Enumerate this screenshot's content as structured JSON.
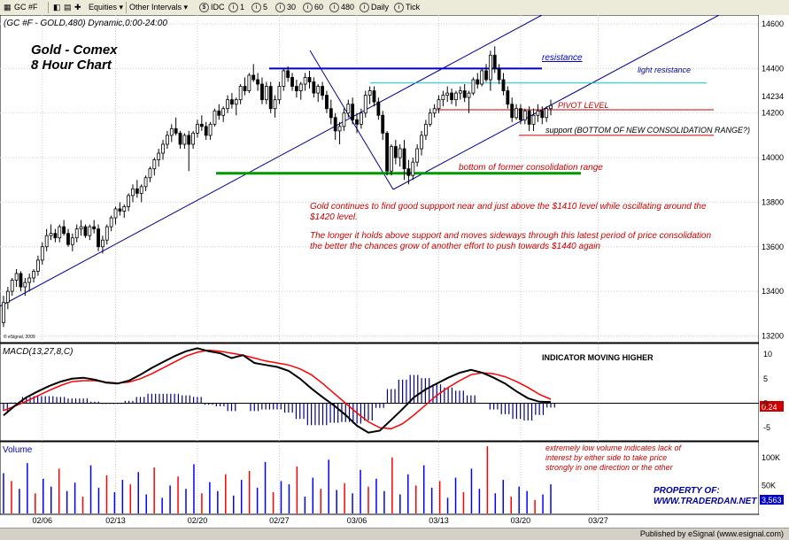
{
  "toolbar": {
    "symbol": "GC #F",
    "equities_label": "Equities",
    "other_intervals_label": "Other Intervals",
    "idc_label": "IDC",
    "i1_label": "1",
    "i5_label": "5",
    "i30_label": "30",
    "i60_label": "60",
    "i480_label": "480",
    "daily_label": "Daily",
    "tick_label": "Tick"
  },
  "chart_header": "(GC #F - GOLD,480) Dynamic,0:00-24:00",
  "chart_title_line1": "Gold - Comex",
  "chart_title_line2": "8 Hour Chart",
  "copyright": "© eSignal, 2009",
  "annotations": {
    "resistance": "resistance",
    "light_resistance": "light resistance",
    "pivot": "PIVOT LEVEL",
    "support": "support (BOTTOM OF NEW CONSOLIDATION RANGE?)",
    "former_range": "bottom of former consolidation range",
    "comment1": "Gold continues to find good suppport near and just above the $1410 level while oscillating around the $1420 level.",
    "comment2": "The longer it holds above support and moves sideways through this latest period of price consolidation the better the chances grow of another effort to push towards $1440 again",
    "macd_note": "INDICATOR MOVING HIGHER",
    "volume_note": "extremely low volume indicates lack of interest by either side to take price strongly in one direction or the other",
    "property_line1": "PROPERTY OF:",
    "property_line2": "WWW.TRADERDAN.NET"
  },
  "macd_label": "MACD(13,27,8,C)",
  "volume_label": "Volume",
  "last_price": "14234",
  "macd_last": "0.24",
  "volume_last": "3,563",
  "status_text": "Published by eSignal (www.esignal.com)",
  "colors": {
    "price_up": "#ffffff",
    "price_down": "#000000",
    "channel": "#000099",
    "resistance": "#0000cc",
    "light_resistance": "#00cccc",
    "pivot": "#cc0000",
    "former_range": "#009900",
    "text_red": "#cc0000",
    "text_blue": "#000099",
    "macd_line": "#000000",
    "signal_line": "#ff0000",
    "hist": "#000080",
    "vol_up": "#0000ff",
    "vol_down": "#ff0000"
  },
  "chart_data": [
    {
      "type": "candlestick",
      "title": "Gold - Comex 8 Hour Chart",
      "x_tick_labels": [
        "02/06",
        "02/13",
        "02/20",
        "02/27",
        "03/06",
        "03/13",
        "03/20",
        "03/27"
      ],
      "x_tick_bar_index": [
        9,
        26,
        45,
        64,
        82,
        101,
        120,
        138
      ],
      "y_ticks": [
        13200,
        13400,
        13600,
        13800,
        14000,
        14200,
        14400,
        14600
      ],
      "ylim": [
        13170,
        14640
      ],
      "bars": [
        [
          13260,
          13380,
          13240,
          13350
        ],
        [
          13350,
          13420,
          13320,
          13400
        ],
        [
          13400,
          13460,
          13380,
          13450
        ],
        [
          13450,
          13500,
          13420,
          13480
        ],
        [
          13480,
          13490,
          13400,
          13420
        ],
        [
          13420,
          13460,
          13380,
          13440
        ],
        [
          13440,
          13480,
          13400,
          13460
        ],
        [
          13460,
          13500,
          13440,
          13490
        ],
        [
          13490,
          13560,
          13470,
          13540
        ],
        [
          13540,
          13620,
          13520,
          13600
        ],
        [
          13600,
          13680,
          13580,
          13650
        ],
        [
          13650,
          13700,
          13630,
          13660
        ],
        [
          13660,
          13680,
          13620,
          13640
        ],
        [
          13640,
          13700,
          13620,
          13690
        ],
        [
          13690,
          13720,
          13650,
          13660
        ],
        [
          13660,
          13680,
          13600,
          13610
        ],
        [
          13610,
          13660,
          13580,
          13640
        ],
        [
          13640,
          13700,
          13620,
          13680
        ],
        [
          13680,
          13720,
          13650,
          13690
        ],
        [
          13690,
          13700,
          13640,
          13650
        ],
        [
          13650,
          13700,
          13630,
          13690
        ],
        [
          13690,
          13720,
          13660,
          13680
        ],
        [
          13680,
          13700,
          13580,
          13600
        ],
        [
          13600,
          13650,
          13570,
          13630
        ],
        [
          13630,
          13700,
          13610,
          13690
        ],
        [
          13690,
          13740,
          13670,
          13730
        ],
        [
          13730,
          13780,
          13700,
          13770
        ],
        [
          13770,
          13800,
          13740,
          13760
        ],
        [
          13760,
          13790,
          13730,
          13780
        ],
        [
          13780,
          13840,
          13760,
          13830
        ],
        [
          13830,
          13880,
          13800,
          13860
        ],
        [
          13860,
          13900,
          13820,
          13840
        ],
        [
          13840,
          13880,
          13800,
          13870
        ],
        [
          13870,
          13920,
          13850,
          13910
        ],
        [
          13910,
          13960,
          13890,
          13950
        ],
        [
          13950,
          14000,
          13920,
          13990
        ],
        [
          13990,
          14040,
          13960,
          14020
        ],
        [
          14020,
          14080,
          13990,
          14060
        ],
        [
          14060,
          14120,
          14040,
          14100
        ],
        [
          14100,
          14150,
          14070,
          14130
        ],
        [
          14130,
          14180,
          14100,
          14110
        ],
        [
          14110,
          14120,
          14040,
          14060
        ],
        [
          14060,
          14110,
          14040,
          14100
        ],
        [
          14100,
          14120,
          13940,
          14060
        ],
        [
          14060,
          14120,
          14040,
          14110
        ],
        [
          14110,
          14170,
          14090,
          14150
        ],
        [
          14150,
          14190,
          14120,
          14140
        ],
        [
          14140,
          14160,
          14080,
          14100
        ],
        [
          14100,
          14160,
          14080,
          14150
        ],
        [
          14150,
          14220,
          14140,
          14210
        ],
        [
          14210,
          14240,
          14170,
          14190
        ],
        [
          14190,
          14230,
          14160,
          14220
        ],
        [
          14220,
          14280,
          14200,
          14260
        ],
        [
          14260,
          14290,
          14220,
          14240
        ],
        [
          14240,
          14270,
          14190,
          14260
        ],
        [
          14260,
          14330,
          14240,
          14320
        ],
        [
          14320,
          14360,
          14280,
          14300
        ],
        [
          14300,
          14380,
          14290,
          14370
        ],
        [
          14370,
          14420,
          14340,
          14350
        ],
        [
          14350,
          14380,
          14300,
          14330
        ],
        [
          14330,
          14360,
          14240,
          14260
        ],
        [
          14260,
          14340,
          14240,
          14320
        ],
        [
          14320,
          14340,
          14200,
          14220
        ],
        [
          14220,
          14280,
          14180,
          14260
        ],
        [
          14260,
          14340,
          14240,
          14320
        ],
        [
          14320,
          14400,
          14300,
          14390
        ],
        [
          14390,
          14410,
          14340,
          14360
        ],
        [
          14360,
          14380,
          14300,
          14320
        ],
        [
          14320,
          14350,
          14270,
          14300
        ],
        [
          14300,
          14340,
          14260,
          14330
        ],
        [
          14330,
          14380,
          14300,
          14360
        ],
        [
          14360,
          14390,
          14310,
          14340
        ],
        [
          14340,
          14360,
          14270,
          14290
        ],
        [
          14290,
          14330,
          14250,
          14320
        ],
        [
          14320,
          14340,
          14260,
          14280
        ],
        [
          14280,
          14300,
          14200,
          14220
        ],
        [
          14220,
          14260,
          14150,
          14180
        ],
        [
          14180,
          14200,
          14080,
          14120
        ],
        [
          14120,
          14160,
          14060,
          14140
        ],
        [
          14140,
          14220,
          14120,
          14200
        ],
        [
          14200,
          14260,
          14180,
          14240
        ],
        [
          14240,
          14270,
          14150,
          14170
        ],
        [
          14170,
          14200,
          14110,
          14150
        ],
        [
          14150,
          14220,
          14130,
          14200
        ],
        [
          14200,
          14300,
          14180,
          14280
        ],
        [
          14280,
          14320,
          14240,
          14300
        ],
        [
          14300,
          14320,
          14230,
          14250
        ],
        [
          14250,
          14270,
          14170,
          14190
        ],
        [
          14190,
          14210,
          14080,
          14110
        ],
        [
          14110,
          14120,
          13920,
          13940
        ],
        [
          13940,
          14060,
          13920,
          14050
        ],
        [
          14050,
          14080,
          13970,
          14000
        ],
        [
          14000,
          14060,
          13960,
          14040
        ],
        [
          14040,
          14080,
          13900,
          13950
        ],
        [
          13950,
          13990,
          13880,
          13920
        ],
        [
          13920,
          14000,
          13900,
          13980
        ],
        [
          13980,
          14060,
          13960,
          14040
        ],
        [
          14040,
          14120,
          14010,
          14100
        ],
        [
          14100,
          14170,
          14080,
          14150
        ],
        [
          14150,
          14220,
          14140,
          14200
        ],
        [
          14200,
          14240,
          14180,
          14220
        ],
        [
          14220,
          14280,
          14200,
          14260
        ],
        [
          14260,
          14300,
          14230,
          14280
        ],
        [
          14280,
          14320,
          14250,
          14290
        ],
        [
          14290,
          14310,
          14240,
          14260
        ],
        [
          14260,
          14300,
          14230,
          14290
        ],
        [
          14290,
          14320,
          14260,
          14300
        ],
        [
          14300,
          14330,
          14250,
          14270
        ],
        [
          14270,
          14300,
          14200,
          14290
        ],
        [
          14290,
          14360,
          14280,
          14350
        ],
        [
          14350,
          14380,
          14310,
          14330
        ],
        [
          14330,
          14400,
          14320,
          14390
        ],
        [
          14390,
          14420,
          14340,
          14350
        ],
        [
          14350,
          14480,
          14300,
          14460
        ],
        [
          14460,
          14500,
          14380,
          14400
        ],
        [
          14400,
          14420,
          14330,
          14350
        ],
        [
          14350,
          14380,
          14280,
          14300
        ],
        [
          14300,
          14320,
          14220,
          14240
        ],
        [
          14240,
          14270,
          14160,
          14180
        ],
        [
          14180,
          14240,
          14170,
          14220
        ],
        [
          14220,
          14240,
          14150,
          14170
        ],
        [
          14170,
          14220,
          14150,
          14210
        ],
        [
          14210,
          14230,
          14120,
          14150
        ],
        [
          14150,
          14220,
          14120,
          14190
        ],
        [
          14190,
          14240,
          14160,
          14210
        ],
        [
          14210,
          14230,
          14150,
          14180
        ],
        [
          14180,
          14230,
          14160,
          14220
        ],
        [
          14220,
          14260,
          14190,
          14234
        ]
      ],
      "lines": {
        "resistance": 14400,
        "light_resistance": 14335,
        "pivot": 14215,
        "support": 14100,
        "former_range_bottom": 13930
      },
      "macd": {
        "label": "MACD(13,27,8,C)",
        "y_ticks": [
          10,
          5,
          0,
          -5
        ],
        "ylim": [
          -7.5,
          12
        ],
        "macd_line": [
          -2.5,
          -0.5,
          1.2,
          2.4,
          3.5,
          4.4,
          5,
          5.2,
          4.8,
          4.2,
          4,
          4.6,
          5.8,
          7.2,
          8.4,
          9.6,
          10.6,
          11.2,
          10.6,
          10.2,
          9.2,
          9.8,
          8.2,
          7.8,
          7.4,
          6.6,
          5,
          3,
          1.2,
          -0.5,
          -2.4,
          -4.6,
          -6,
          -5.6,
          -3.4,
          -1.2,
          1.2,
          2.8,
          4,
          5.2,
          6.2,
          6.8,
          6.2,
          5.2,
          4,
          2.4,
          1,
          0.3,
          0.24
        ],
        "signal_line": [
          -1.5,
          -0.6,
          0.4,
          1.5,
          2.6,
          3.6,
          4.4,
          4.6,
          4.6,
          4.3,
          4.1,
          4.3,
          5,
          6,
          7.2,
          8.4,
          9.6,
          10.4,
          10.8,
          10.6,
          10.2,
          9.8,
          9.2,
          8.6,
          8.2,
          7.8,
          7,
          5.8,
          4,
          2,
          0,
          -2,
          -3.8,
          -5,
          -5.2,
          -4.2,
          -2.4,
          -0.4,
          1.6,
          3.2,
          4.6,
          5.8,
          6.2,
          6,
          5.4,
          4.4,
          3.2,
          1.8,
          0.8
        ]
      },
      "volume": {
        "label": "Volume",
        "y_ticks": [
          "100K",
          "50K"
        ],
        "values": [
          72,
          58,
          44,
          90,
          36,
          62,
          48,
          80,
          40,
          55,
          30,
          86,
          46,
          68,
          38,
          60,
          52,
          74,
          34,
          82,
          28,
          50,
          66,
          44,
          88,
          36,
          56,
          40,
          70,
          32,
          60,
          76,
          46,
          92,
          38,
          58,
          52,
          84,
          30,
          64,
          44,
          96,
          42,
          54,
          36,
          78,
          48,
          62,
          40,
          100,
          34,
          70,
          50,
          86,
          46,
          58,
          28,
          64,
          38,
          80,
          44,
          120,
          36,
          60,
          30,
          48,
          40,
          24,
          34,
          52
        ]
      }
    }
  ]
}
